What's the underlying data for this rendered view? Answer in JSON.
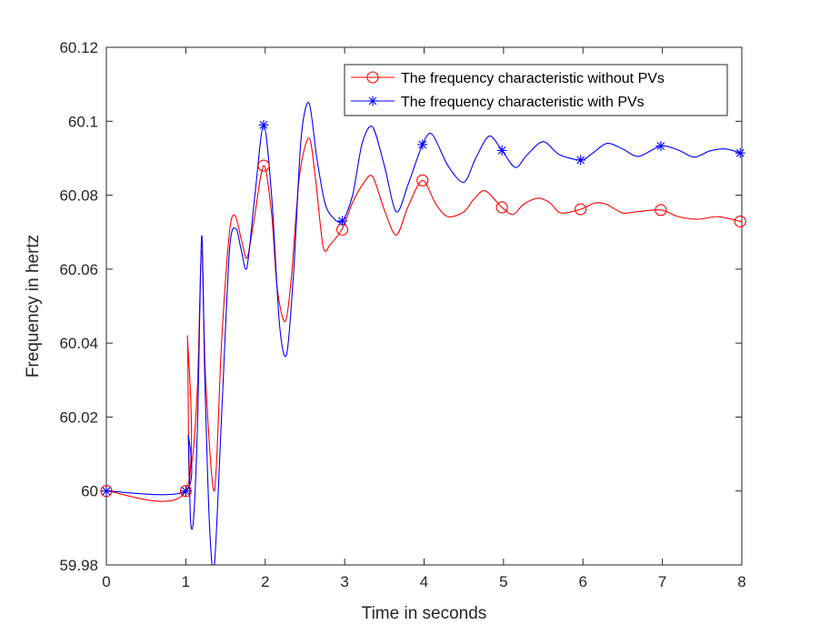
{
  "chart_data": {
    "type": "line",
    "title": "",
    "xlabel": "Time in seconds",
    "ylabel": "Frequency in hertz",
    "xlim": [
      0,
      8
    ],
    "ylim": [
      59.98,
      60.12
    ],
    "x_ticks": [
      0,
      1,
      2,
      3,
      4,
      5,
      6,
      7,
      8
    ],
    "y_ticks": [
      59.98,
      60,
      60.02,
      60.04,
      60.06,
      60.08,
      60.1,
      60.12
    ],
    "x_tick_labels": [
      "0",
      "1",
      "2",
      "3",
      "4",
      "5",
      "6",
      "7",
      "8"
    ],
    "y_tick_labels": [
      "59.98",
      "60",
      "60.02",
      "60.04",
      "60.06",
      "60.08",
      "60.1",
      "60.12"
    ],
    "grid": false,
    "legend_position": "top-right",
    "series": [
      {
        "name": "The frequency characteristic without PVs",
        "color": "#ff0000",
        "marker": "circle",
        "points": [
          [
            0,
            60.0
          ],
          [
            1.0,
            60.0
          ],
          [
            1.02,
            60.042
          ],
          [
            1.04,
            60.005
          ],
          [
            1.06,
            60.006
          ],
          [
            1.1,
            60.012
          ],
          [
            1.15,
            60.03
          ],
          [
            1.2,
            60.065
          ],
          [
            1.25,
            60.03
          ],
          [
            1.36,
            60.0
          ],
          [
            1.45,
            60.04
          ],
          [
            1.55,
            60.07
          ],
          [
            1.62,
            60.0745
          ],
          [
            1.7,
            60.068
          ],
          [
            1.77,
            60.063
          ],
          [
            1.85,
            60.072
          ],
          [
            1.98,
            60.088
          ],
          [
            2.08,
            60.075
          ],
          [
            2.15,
            60.055
          ],
          [
            2.25,
            60.0458
          ],
          [
            2.33,
            60.058
          ],
          [
            2.43,
            60.085
          ],
          [
            2.55,
            60.0955
          ],
          [
            2.63,
            60.085
          ],
          [
            2.73,
            60.066
          ],
          [
            2.82,
            60.0667
          ],
          [
            2.97,
            60.071
          ],
          [
            3.1,
            60.078
          ],
          [
            3.23,
            60.083
          ],
          [
            3.35,
            60.0851
          ],
          [
            3.5,
            60.076
          ],
          [
            3.65,
            60.0692
          ],
          [
            3.8,
            60.077
          ],
          [
            3.98,
            60.084
          ],
          [
            4.15,
            60.0775
          ],
          [
            4.3,
            60.0742
          ],
          [
            4.5,
            60.0755
          ],
          [
            4.63,
            60.079
          ],
          [
            4.77,
            60.0812
          ],
          [
            4.98,
            60.0767
          ],
          [
            5.12,
            60.0748
          ],
          [
            5.25,
            60.0775
          ],
          [
            5.43,
            60.0792
          ],
          [
            5.58,
            60.078
          ],
          [
            5.72,
            60.0752
          ],
          [
            5.97,
            60.0762
          ],
          [
            6.15,
            60.0779
          ],
          [
            6.3,
            60.0775
          ],
          [
            6.5,
            60.0752
          ],
          [
            6.7,
            60.0756
          ],
          [
            6.98,
            60.076
          ],
          [
            7.2,
            60.0742
          ],
          [
            7.45,
            60.0735
          ],
          [
            7.7,
            60.0742
          ],
          [
            8.0,
            60.0728
          ]
        ],
        "markers": [
          [
            0,
            60.0
          ],
          [
            1.0,
            60.0
          ],
          [
            1.98,
            60.088
          ],
          [
            2.97,
            60.0707
          ],
          [
            3.98,
            60.084
          ],
          [
            4.98,
            60.0767
          ],
          [
            5.97,
            60.0762
          ],
          [
            6.98,
            60.076
          ],
          [
            7.98,
            60.0729
          ]
        ]
      },
      {
        "name": "The frequency characteristic with PVs",
        "color": "#0000ff",
        "marker": "star",
        "points": [
          [
            0,
            60.0
          ],
          [
            1.0,
            60.0
          ],
          [
            1.03,
            60.015
          ],
          [
            1.06,
            59.992
          ],
          [
            1.1,
            59.993
          ],
          [
            1.15,
            60.02
          ],
          [
            1.2,
            60.069
          ],
          [
            1.24,
            60.03
          ],
          [
            1.3,
            59.99
          ],
          [
            1.36,
            59.98
          ],
          [
            1.45,
            60.02
          ],
          [
            1.55,
            60.065
          ],
          [
            1.63,
            60.071
          ],
          [
            1.7,
            60.065
          ],
          [
            1.77,
            60.0605
          ],
          [
            1.87,
            60.08
          ],
          [
            1.98,
            60.099
          ],
          [
            2.08,
            60.08
          ],
          [
            2.18,
            60.045
          ],
          [
            2.27,
            60.037
          ],
          [
            2.36,
            60.06
          ],
          [
            2.45,
            60.095
          ],
          [
            2.55,
            60.105
          ],
          [
            2.65,
            60.09
          ],
          [
            2.75,
            60.078
          ],
          [
            2.85,
            60.074
          ],
          [
            2.97,
            60.073
          ],
          [
            3.1,
            60.08
          ],
          [
            3.22,
            60.094
          ],
          [
            3.35,
            60.0985
          ],
          [
            3.5,
            60.088
          ],
          [
            3.65,
            60.0755
          ],
          [
            3.8,
            60.083
          ],
          [
            3.98,
            60.0937
          ],
          [
            4.1,
            60.0965
          ],
          [
            4.3,
            60.088
          ],
          [
            4.5,
            60.0835
          ],
          [
            4.65,
            60.09
          ],
          [
            4.82,
            60.096
          ],
          [
            4.98,
            60.0921
          ],
          [
            5.15,
            60.0875
          ],
          [
            5.3,
            60.091
          ],
          [
            5.5,
            60.0945
          ],
          [
            5.7,
            60.091
          ],
          [
            5.97,
            60.0895
          ],
          [
            6.1,
            60.091
          ],
          [
            6.3,
            60.094
          ],
          [
            6.5,
            60.0925
          ],
          [
            6.7,
            60.0905
          ],
          [
            6.98,
            60.0933
          ],
          [
            7.2,
            60.0922
          ],
          [
            7.4,
            60.0903
          ],
          [
            7.6,
            60.092
          ],
          [
            7.8,
            60.0925
          ],
          [
            8.0,
            60.0913
          ]
        ],
        "markers": [
          [
            0,
            60.0
          ],
          [
            1.0,
            60.0
          ],
          [
            1.98,
            60.099
          ],
          [
            2.97,
            60.073
          ],
          [
            3.98,
            60.0937
          ],
          [
            4.98,
            60.0921
          ],
          [
            5.97,
            60.0895
          ],
          [
            6.98,
            60.0933
          ],
          [
            7.98,
            60.0914
          ]
        ]
      }
    ]
  }
}
